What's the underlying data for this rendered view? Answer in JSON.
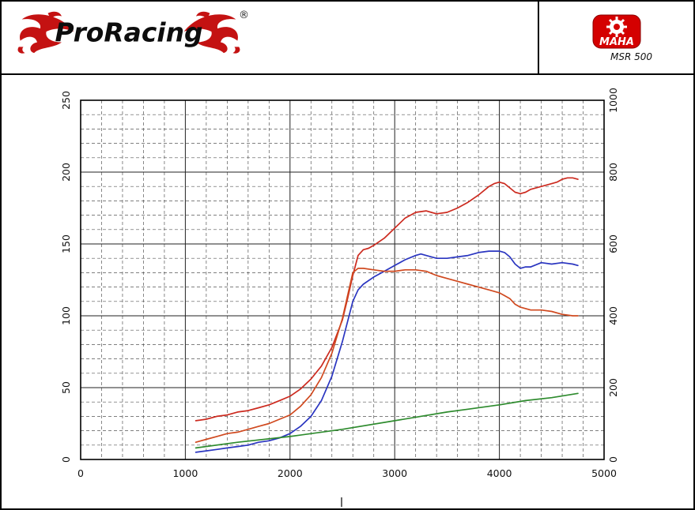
{
  "header": {
    "brand": "ProRacing",
    "registered_mark": "®",
    "device": {
      "name": "MAHA",
      "model": "MSR 500"
    }
  },
  "chart_data": {
    "type": "line",
    "grid": true,
    "x": {
      "min": 0,
      "max": 5000,
      "major_ticks": [
        0,
        1000,
        2000,
        3000,
        4000,
        5000
      ],
      "minor_step": 200
    },
    "y_left": {
      "min": 0,
      "max": 250,
      "major_ticks": [
        0,
        50,
        100,
        150,
        200,
        250
      ],
      "minor_step": 10,
      "color": "#111111"
    },
    "y_right": {
      "min": 0,
      "max": 1000,
      "major_ticks": [
        0,
        200,
        400,
        600,
        800,
        1000
      ],
      "color": "#cc3a00"
    },
    "series": [
      {
        "name": "red_curve",
        "color": "#cc2a1f",
        "axis": "left",
        "points": [
          [
            1100,
            27
          ],
          [
            1200,
            28
          ],
          [
            1300,
            30
          ],
          [
            1400,
            31
          ],
          [
            1500,
            33
          ],
          [
            1600,
            34
          ],
          [
            1700,
            36
          ],
          [
            1800,
            38
          ],
          [
            1900,
            41
          ],
          [
            2000,
            44
          ],
          [
            2100,
            49
          ],
          [
            2200,
            56
          ],
          [
            2300,
            65
          ],
          [
            2400,
            78
          ],
          [
            2500,
            97
          ],
          [
            2550,
            112
          ],
          [
            2600,
            128
          ],
          [
            2650,
            142
          ],
          [
            2700,
            146
          ],
          [
            2750,
            147
          ],
          [
            2800,
            149
          ],
          [
            2900,
            154
          ],
          [
            3000,
            161
          ],
          [
            3100,
            168
          ],
          [
            3200,
            172
          ],
          [
            3300,
            173
          ],
          [
            3350,
            172
          ],
          [
            3400,
            171
          ],
          [
            3500,
            172
          ],
          [
            3600,
            175
          ],
          [
            3700,
            179
          ],
          [
            3800,
            184
          ],
          [
            3900,
            190
          ],
          [
            3950,
            192
          ],
          [
            4000,
            193
          ],
          [
            4050,
            192
          ],
          [
            4100,
            189
          ],
          [
            4150,
            186
          ],
          [
            4200,
            185
          ],
          [
            4250,
            186
          ],
          [
            4300,
            188
          ],
          [
            4400,
            190
          ],
          [
            4500,
            192
          ],
          [
            4550,
            193
          ],
          [
            4600,
            195
          ],
          [
            4650,
            196
          ],
          [
            4700,
            196
          ],
          [
            4750,
            195
          ]
        ]
      },
      {
        "name": "blue_curve",
        "color": "#2a35c0",
        "axis": "left",
        "points": [
          [
            1100,
            5
          ],
          [
            1200,
            6
          ],
          [
            1300,
            7
          ],
          [
            1400,
            8
          ],
          [
            1500,
            9
          ],
          [
            1600,
            10
          ],
          [
            1700,
            12
          ],
          [
            1800,
            13
          ],
          [
            1900,
            15
          ],
          [
            2000,
            18
          ],
          [
            2100,
            23
          ],
          [
            2200,
            30
          ],
          [
            2300,
            41
          ],
          [
            2400,
            58
          ],
          [
            2500,
            82
          ],
          [
            2550,
            96
          ],
          [
            2600,
            110
          ],
          [
            2650,
            118
          ],
          [
            2700,
            122
          ],
          [
            2800,
            127
          ],
          [
            2900,
            131
          ],
          [
            3000,
            135
          ],
          [
            3100,
            139
          ],
          [
            3200,
            142
          ],
          [
            3250,
            143
          ],
          [
            3300,
            142
          ],
          [
            3400,
            140
          ],
          [
            3500,
            140
          ],
          [
            3600,
            141
          ],
          [
            3700,
            142
          ],
          [
            3800,
            144
          ],
          [
            3900,
            145
          ],
          [
            4000,
            145
          ],
          [
            4050,
            144
          ],
          [
            4100,
            141
          ],
          [
            4150,
            136
          ],
          [
            4200,
            133
          ],
          [
            4250,
            134
          ],
          [
            4300,
            134
          ],
          [
            4400,
            137
          ],
          [
            4500,
            136
          ],
          [
            4600,
            137
          ],
          [
            4700,
            136
          ],
          [
            4750,
            135
          ]
        ]
      },
      {
        "name": "orange_curve",
        "color": "#d0491f",
        "axis": "right",
        "points": [
          [
            1100,
            48
          ],
          [
            1200,
            56
          ],
          [
            1300,
            64
          ],
          [
            1400,
            72
          ],
          [
            1500,
            76
          ],
          [
            1600,
            84
          ],
          [
            1700,
            92
          ],
          [
            1800,
            100
          ],
          [
            1900,
            112
          ],
          [
            2000,
            124
          ],
          [
            2100,
            148
          ],
          [
            2200,
            180
          ],
          [
            2300,
            228
          ],
          [
            2400,
            296
          ],
          [
            2500,
            392
          ],
          [
            2550,
            456
          ],
          [
            2600,
            520
          ],
          [
            2650,
            532
          ],
          [
            2700,
            532
          ],
          [
            2800,
            528
          ],
          [
            2900,
            524
          ],
          [
            3000,
            524
          ],
          [
            3100,
            528
          ],
          [
            3200,
            528
          ],
          [
            3300,
            524
          ],
          [
            3400,
            512
          ],
          [
            3500,
            504
          ],
          [
            3600,
            496
          ],
          [
            3700,
            488
          ],
          [
            3800,
            480
          ],
          [
            3900,
            472
          ],
          [
            4000,
            464
          ],
          [
            4050,
            456
          ],
          [
            4100,
            448
          ],
          [
            4150,
            432
          ],
          [
            4200,
            424
          ],
          [
            4300,
            416
          ],
          [
            4400,
            416
          ],
          [
            4500,
            412
          ],
          [
            4600,
            404
          ],
          [
            4700,
            400
          ],
          [
            4750,
            400
          ]
        ]
      },
      {
        "name": "green_curve",
        "color": "#2e8b2e",
        "axis": "left",
        "points": [
          [
            1100,
            8
          ],
          [
            1500,
            12
          ],
          [
            2000,
            16
          ],
          [
            2500,
            21
          ],
          [
            3000,
            27
          ],
          [
            3500,
            33
          ],
          [
            3700,
            35
          ],
          [
            4000,
            38
          ],
          [
            4250,
            41
          ],
          [
            4500,
            43
          ],
          [
            4750,
            46
          ]
        ]
      }
    ]
  }
}
